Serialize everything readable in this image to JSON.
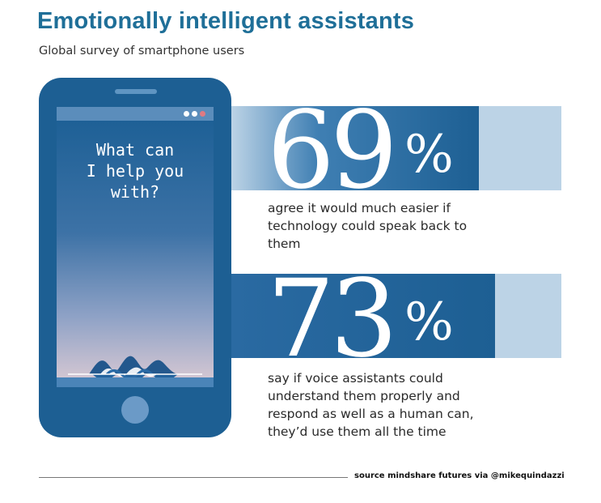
{
  "title": "Emotionally intelligent assistants",
  "subtitle": "Global survey of smartphone users",
  "phone": {
    "prompt": "What can\nI help you\nwith?",
    "status_dots": [
      "#ffffff",
      "#ffffff",
      "#e07a82"
    ]
  },
  "colors": {
    "brand_blue": "#1d5f93",
    "light_blue": "#bcd3e6",
    "title_blue": "#1f6f98"
  },
  "chart_data": {
    "type": "bar",
    "title": "Emotionally intelligent assistants",
    "subtitle": "Global survey of smartphone users",
    "unit": "%",
    "categories": [
      "agree it would much easier if technology could speak back to them",
      "say if voice assistants could understand them properly and respond as well as a human can, they’d use them all the time"
    ],
    "values": [
      69,
      73
    ],
    "ylim": [
      0,
      100
    ],
    "stats": [
      {
        "value": "69",
        "unit": "%",
        "text": "agree it would much easier if\ntechnology could speak back to\nthem"
      },
      {
        "value": "73",
        "unit": "%",
        "text": "say if voice assistants could\nunderstand them properly and\nrespond as well as a human can,\nthey’d use them all the time"
      }
    ]
  },
  "source": "source mindshare futures via @mikequindazzi"
}
